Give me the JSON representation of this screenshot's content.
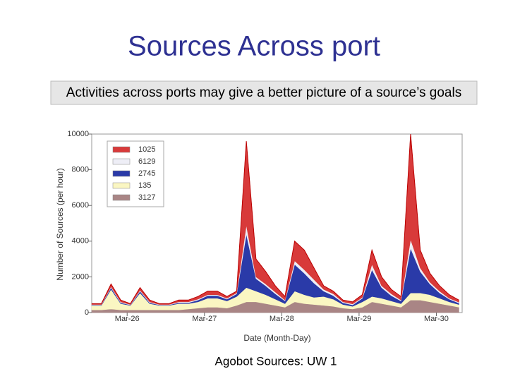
{
  "slide": {
    "title": "Sources Across port",
    "subtitle": "Activities across ports may give a better picture of a source’s goals",
    "caption": "Agobot Sources: UW 1"
  },
  "chart_data": {
    "type": "stacked-area",
    "y_label": "Number of Sources (per hour)",
    "x_label": "Date (Month-Day)",
    "x": [
      0,
      3,
      6,
      9,
      12,
      15,
      18,
      21,
      24,
      27,
      30,
      33,
      36,
      39,
      42,
      45,
      48,
      51,
      54,
      57,
      60,
      63,
      66,
      69,
      72,
      75,
      78,
      81,
      84,
      87,
      90,
      93,
      96,
      99,
      102,
      105,
      108,
      111,
      114
    ],
    "xlim": [
      0,
      115
    ],
    "xticks": [
      {
        "value": 11,
        "label": "Mar-26"
      },
      {
        "value": 35,
        "label": "Mar-27"
      },
      {
        "value": 59,
        "label": "Mar-28"
      },
      {
        "value": 83,
        "label": "Mar-29"
      },
      {
        "value": 107,
        "label": "Mar-30"
      }
    ],
    "ylim": [
      0,
      10000
    ],
    "yticks": [
      0,
      2000,
      4000,
      6000,
      8000,
      10000
    ],
    "legend": "top-left",
    "series": [
      {
        "name": "3127",
        "color": "#a98585",
        "values": [
          150,
          150,
          200,
          150,
          150,
          150,
          150,
          150,
          150,
          150,
          200,
          250,
          300,
          300,
          250,
          400,
          600,
          600,
          500,
          400,
          300,
          600,
          500,
          450,
          400,
          350,
          250,
          200,
          300,
          600,
          500,
          400,
          300,
          700,
          700,
          600,
          500,
          400,
          300
        ]
      },
      {
        "name": "135",
        "color": "#faf6c2",
        "values": [
          250,
          250,
          1100,
          350,
          250,
          950,
          350,
          250,
          250,
          350,
          300,
          350,
          500,
          500,
          400,
          500,
          800,
          600,
          500,
          350,
          200,
          600,
          500,
          400,
          500,
          400,
          200,
          150,
          300,
          300,
          300,
          250,
          200,
          400,
          400,
          400,
          300,
          200,
          150
        ]
      },
      {
        "name": "2745",
        "color": "#2a3aa8",
        "values": [
          30,
          30,
          100,
          50,
          30,
          100,
          50,
          30,
          30,
          50,
          50,
          100,
          150,
          150,
          100,
          150,
          3000,
          700,
          500,
          300,
          150,
          1500,
          1200,
          800,
          300,
          200,
          100,
          80,
          200,
          1500,
          600,
          300,
          150,
          2500,
          1200,
          600,
          300,
          150,
          80
        ]
      },
      {
        "name": "6129",
        "color": "#eeeef6",
        "values": [
          20,
          20,
          50,
          50,
          20,
          50,
          50,
          20,
          20,
          50,
          50,
          50,
          50,
          50,
          50,
          50,
          500,
          100,
          100,
          100,
          50,
          200,
          200,
          200,
          100,
          100,
          50,
          50,
          50,
          300,
          100,
          100,
          50,
          500,
          200,
          100,
          100,
          50,
          50
        ]
      },
      {
        "name": "1025",
        "color": "#d83a3a",
        "values": [
          50,
          50,
          150,
          100,
          50,
          150,
          100,
          50,
          50,
          100,
          100,
          150,
          200,
          200,
          100,
          100,
          4700,
          1000,
          700,
          350,
          200,
          1100,
          1100,
          650,
          200,
          150,
          100,
          120,
          150,
          800,
          500,
          250,
          200,
          5900,
          1000,
          500,
          300,
          200,
          120
        ]
      }
    ]
  }
}
